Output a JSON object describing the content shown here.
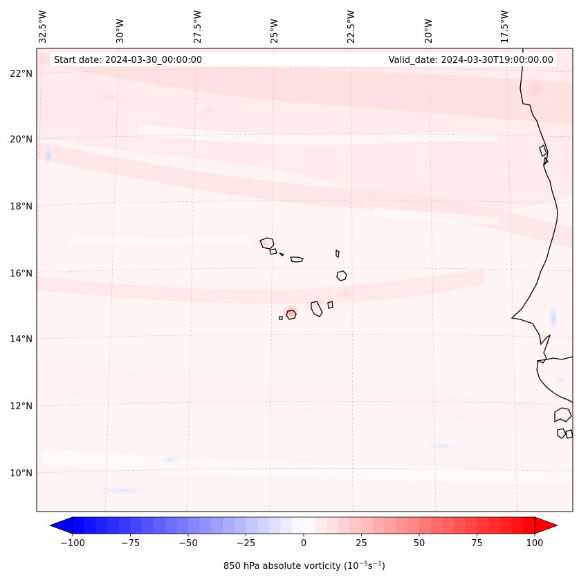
{
  "map": {
    "start_date": "Start date: 2024-03-30_00:00:00",
    "valid_date": "Valid_date: 2024-03-30T19:00:00.00",
    "lon_labels": [
      "32.5°W",
      "30°W",
      "27.5°W",
      "25°W",
      "22.5°W",
      "20°W",
      "17.5°W"
    ],
    "lat_labels": [
      "22°N",
      "20°N",
      "18°N",
      "16°N",
      "14°N",
      "12°N",
      "10°N"
    ],
    "field": "850 hPa absolute vorticity",
    "coastline_color": "#000000",
    "gridline_color": "#c8c8c8"
  },
  "colorbar": {
    "min": -100,
    "max": 100,
    "step": 5,
    "ticks": [
      "−100",
      "−75",
      "−50",
      "−25",
      "0",
      "25",
      "50",
      "75",
      "100"
    ],
    "tick_values": [
      -100,
      -75,
      -50,
      -25,
      0,
      25,
      50,
      75,
      100
    ],
    "label_main": "850 hPa absolute vorticity (10",
    "label_exp1": "−5",
    "label_mid": "s",
    "label_exp2": "−1",
    "label_end": ")",
    "low_color": "#0000ff",
    "high_color": "#ff0000",
    "extend": "both",
    "colormap": "bwr"
  }
}
